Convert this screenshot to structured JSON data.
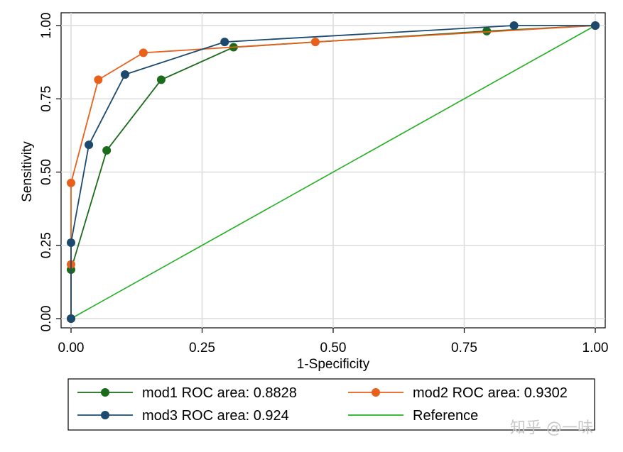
{
  "chart_data": {
    "type": "line",
    "title": "",
    "xlabel": "1-Specificity",
    "ylabel": "Sensitivity",
    "xlim": [
      0,
      1
    ],
    "ylim": [
      0,
      1
    ],
    "xticks": [
      0,
      0.25,
      0.5,
      0.75,
      1
    ],
    "yticks": [
      0,
      0.25,
      0.5,
      0.75,
      1
    ],
    "xtick_labels": [
      "0.00",
      "0.25",
      "0.50",
      "0.75",
      "1.00"
    ],
    "ytick_labels": [
      "0.00",
      "0.25",
      "0.50",
      "0.75",
      "1.00"
    ],
    "grid": true,
    "legend_position": "bottom",
    "series": [
      {
        "name": "mod1 ROC area: 0.8828",
        "color": "#1a6b1a",
        "marker": true,
        "x": [
          0,
          0,
          0.068,
          0.172,
          0.31,
          0.793,
          1
        ],
        "y": [
          0,
          0.167,
          0.574,
          0.815,
          0.926,
          0.981,
          1
        ]
      },
      {
        "name": "mod2 ROC area: 0.9302",
        "color": "#e8601c",
        "marker": true,
        "x": [
          0,
          0,
          0,
          0.052,
          0.138,
          0.466,
          1
        ],
        "y": [
          0,
          0.185,
          0.463,
          0.815,
          0.907,
          0.944,
          1
        ]
      },
      {
        "name": "mod3 ROC area: 0.924",
        "color": "#1c4a6e",
        "marker": true,
        "x": [
          0,
          0,
          0.034,
          0.103,
          0.293,
          0.845,
          1
        ],
        "y": [
          0,
          0.259,
          0.593,
          0.833,
          0.944,
          1,
          1
        ]
      },
      {
        "name": "Reference",
        "color": "#22b022",
        "marker": false,
        "x": [
          0,
          1
        ],
        "y": [
          0,
          1
        ]
      }
    ]
  },
  "watermark": "知乎 @一味"
}
